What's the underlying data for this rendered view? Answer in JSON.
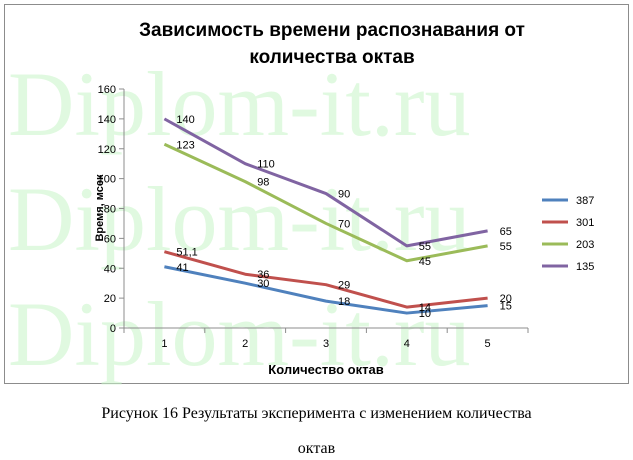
{
  "chart_data": {
    "type": "line",
    "title_line1": "Зависимость времени распознавания от",
    "title_line2": "количества октав",
    "xlabel": "Количество октав",
    "ylabel": "Время, мсек",
    "x": [
      1,
      2,
      3,
      4,
      5
    ],
    "ylim": [
      0,
      160
    ],
    "yticks": [
      0,
      20,
      40,
      60,
      80,
      100,
      120,
      140,
      160
    ],
    "grid": false,
    "legend_position": "right",
    "series": [
      {
        "name": "387",
        "color": "#4f81bd",
        "values": [
          41,
          30,
          18,
          10,
          15
        ],
        "labels": [
          "41",
          "30",
          "18",
          "10",
          "15"
        ]
      },
      {
        "name": "301",
        "color": "#c0504d",
        "values": [
          51.1,
          36,
          29,
          14,
          20
        ],
        "labels": [
          "51,1",
          "36",
          "29",
          "14",
          "20"
        ]
      },
      {
        "name": "203",
        "color": "#9bbb59",
        "values": [
          123,
          98,
          70,
          45,
          55
        ],
        "labels": [
          "123",
          "98",
          "70",
          "45",
          "55"
        ]
      },
      {
        "name": "135",
        "color": "#8064a2",
        "values": [
          140,
          110,
          90,
          55,
          65
        ],
        "labels": [
          "140",
          "110",
          "90",
          "55",
          "65"
        ]
      }
    ]
  },
  "watermark": "Diplom-it.ru",
  "caption": {
    "line1": "Рисунок 16 Результаты эксперимента с изменением количества",
    "line2": "октав"
  }
}
